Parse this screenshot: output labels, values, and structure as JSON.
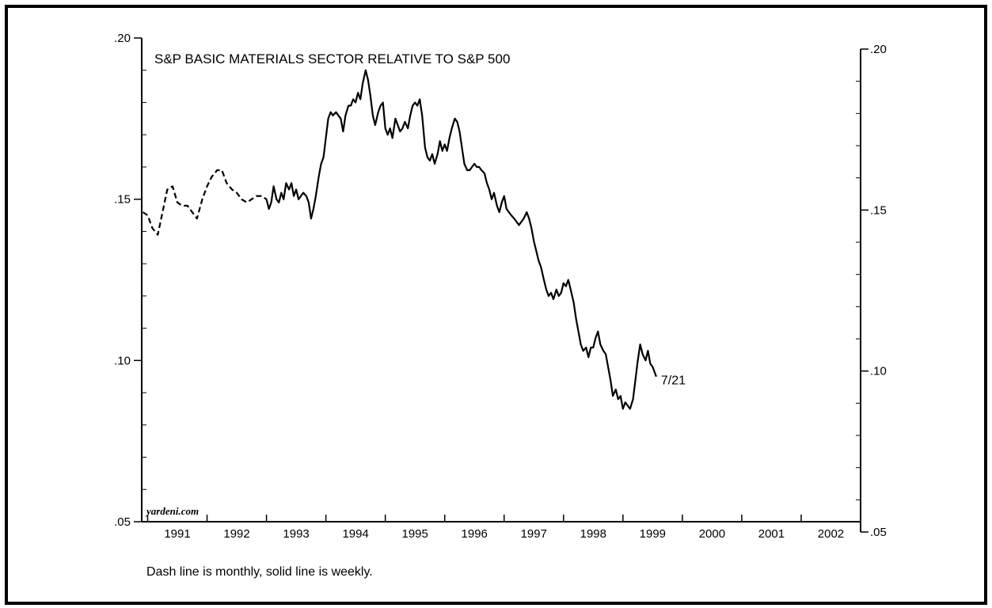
{
  "chart_data": {
    "type": "line",
    "title": "S&P BASIC MATERIALS SECTOR RELATIVE TO S&P 500",
    "xlabel": "",
    "ylabel": "",
    "source": "yardeni.com",
    "note": "Dash line is monthly, solid line is weekly.",
    "annotation": {
      "text": "7/21",
      "x": 1999.56,
      "y": 0.095
    },
    "xlim": [
      1990.9,
      2003.0
    ],
    "ylim": [
      0.05,
      0.2
    ],
    "x_tick_labels": [
      "1991",
      "1992",
      "1993",
      "1994",
      "1995",
      "1996",
      "1997",
      "1998",
      "1999",
      "2000",
      "2001",
      "2002"
    ],
    "y_tick_labels_left": [
      ".05",
      ".10",
      ".15",
      ".20"
    ],
    "y_tick_labels_right": [
      ".05",
      ".10",
      ".15",
      ".20"
    ],
    "y_ticks": [
      0.05,
      0.1,
      0.15,
      0.2
    ],
    "grid": false,
    "series": [
      {
        "name": "Dash line is monthly",
        "style": "dashed",
        "x": [
          1990.92,
          1991.0,
          1991.08,
          1991.17,
          1991.25,
          1991.33,
          1991.42,
          1991.5,
          1991.58,
          1991.67,
          1991.75,
          1991.83,
          1991.92,
          1992.0,
          1992.08,
          1992.17,
          1992.25,
          1992.33,
          1992.42,
          1992.5,
          1992.58,
          1992.67,
          1992.75,
          1992.83,
          1992.92,
          1993.0
        ],
        "y": [
          0.146,
          0.145,
          0.141,
          0.139,
          0.146,
          0.153,
          0.154,
          0.149,
          0.148,
          0.148,
          0.146,
          0.144,
          0.15,
          0.154,
          0.157,
          0.159,
          0.159,
          0.155,
          0.153,
          0.152,
          0.15,
          0.149,
          0.15,
          0.151,
          0.151,
          0.15
        ]
      },
      {
        "name": "solid line is weekly",
        "style": "solid",
        "x": [
          1993.0,
          1993.04,
          1993.08,
          1993.12,
          1993.17,
          1993.21,
          1993.25,
          1993.29,
          1993.33,
          1993.38,
          1993.42,
          1993.46,
          1993.5,
          1993.54,
          1993.58,
          1993.62,
          1993.67,
          1993.71,
          1993.75,
          1993.79,
          1993.83,
          1993.88,
          1993.92,
          1993.96,
          1994.0,
          1994.04,
          1994.08,
          1994.12,
          1994.17,
          1994.21,
          1994.25,
          1994.29,
          1994.33,
          1994.38,
          1994.42,
          1994.46,
          1994.5,
          1994.54,
          1994.58,
          1994.62,
          1994.67,
          1994.71,
          1994.75,
          1994.79,
          1994.83,
          1994.88,
          1994.92,
          1994.96,
          1995.0,
          1995.04,
          1995.08,
          1995.12,
          1995.17,
          1995.21,
          1995.25,
          1995.29,
          1995.33,
          1995.38,
          1995.42,
          1995.46,
          1995.5,
          1995.54,
          1995.58,
          1995.62,
          1995.67,
          1995.71,
          1995.75,
          1995.79,
          1995.83,
          1995.88,
          1995.92,
          1995.96,
          1996.0,
          1996.04,
          1996.08,
          1996.12,
          1996.17,
          1996.21,
          1996.25,
          1996.29,
          1996.33,
          1996.38,
          1996.42,
          1996.46,
          1996.5,
          1996.54,
          1996.58,
          1996.62,
          1996.67,
          1996.71,
          1996.75,
          1996.79,
          1996.83,
          1996.88,
          1996.92,
          1996.96,
          1997.0,
          1997.04,
          1997.08,
          1997.12,
          1997.17,
          1997.21,
          1997.25,
          1997.29,
          1997.33,
          1997.38,
          1997.42,
          1997.46,
          1997.5,
          1997.54,
          1997.58,
          1997.62,
          1997.67,
          1997.71,
          1997.75,
          1997.79,
          1997.83,
          1997.88,
          1997.92,
          1997.96,
          1998.0,
          1998.04,
          1998.08,
          1998.12,
          1998.17,
          1998.21,
          1998.25,
          1998.29,
          1998.33,
          1998.38,
          1998.42,
          1998.46,
          1998.5,
          1998.54,
          1998.58,
          1998.62,
          1998.67,
          1998.71,
          1998.75,
          1998.79,
          1998.83,
          1998.88,
          1998.92,
          1998.96,
          1999.0,
          1999.04,
          1999.08,
          1999.12,
          1999.17,
          1999.21,
          1999.25,
          1999.29,
          1999.33,
          1999.38,
          1999.42,
          1999.46,
          1999.5,
          1999.54,
          1999.56
        ],
        "y": [
          0.15,
          0.147,
          0.149,
          0.154,
          0.15,
          0.149,
          0.152,
          0.15,
          0.155,
          0.153,
          0.155,
          0.151,
          0.153,
          0.15,
          0.151,
          0.152,
          0.151,
          0.149,
          0.144,
          0.147,
          0.151,
          0.157,
          0.161,
          0.163,
          0.169,
          0.175,
          0.177,
          0.176,
          0.177,
          0.176,
          0.175,
          0.171,
          0.176,
          0.179,
          0.179,
          0.181,
          0.18,
          0.183,
          0.181,
          0.186,
          0.19,
          0.187,
          0.182,
          0.176,
          0.173,
          0.177,
          0.179,
          0.18,
          0.172,
          0.17,
          0.172,
          0.169,
          0.175,
          0.173,
          0.171,
          0.172,
          0.174,
          0.172,
          0.176,
          0.179,
          0.18,
          0.179,
          0.181,
          0.176,
          0.166,
          0.163,
          0.162,
          0.164,
          0.161,
          0.164,
          0.168,
          0.165,
          0.167,
          0.165,
          0.169,
          0.172,
          0.175,
          0.174,
          0.171,
          0.166,
          0.161,
          0.159,
          0.159,
          0.16,
          0.161,
          0.16,
          0.16,
          0.159,
          0.158,
          0.155,
          0.153,
          0.15,
          0.152,
          0.148,
          0.146,
          0.149,
          0.151,
          0.147,
          0.146,
          0.145,
          0.144,
          0.143,
          0.142,
          0.143,
          0.144,
          0.146,
          0.144,
          0.141,
          0.137,
          0.134,
          0.131,
          0.129,
          0.125,
          0.122,
          0.12,
          0.121,
          0.119,
          0.122,
          0.12,
          0.121,
          0.124,
          0.123,
          0.125,
          0.122,
          0.118,
          0.113,
          0.109,
          0.105,
          0.103,
          0.104,
          0.101,
          0.104,
          0.104,
          0.107,
          0.109,
          0.105,
          0.103,
          0.102,
          0.098,
          0.094,
          0.089,
          0.091,
          0.088,
          0.089,
          0.085,
          0.087,
          0.086,
          0.085,
          0.088,
          0.094,
          0.1,
          0.105,
          0.102,
          0.1,
          0.103,
          0.099,
          0.098,
          0.096,
          0.095
        ]
      }
    ]
  }
}
